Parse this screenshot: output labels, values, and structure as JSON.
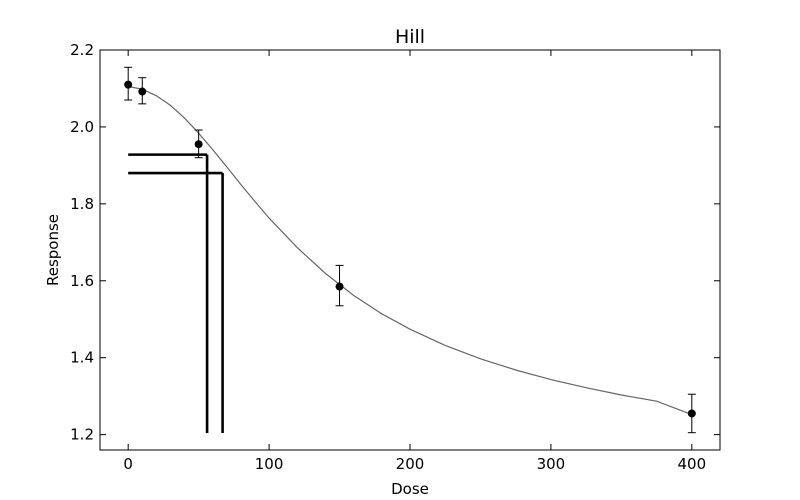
{
  "chart_data": {
    "type": "scatter",
    "title": "Hill",
    "xlabel": "Dose",
    "ylabel": "Response",
    "xlim": [
      -20,
      420
    ],
    "ylim": [
      1.16,
      2.2
    ],
    "xticks": [
      0,
      100,
      200,
      300,
      400
    ],
    "yticks": [
      1.2,
      1.4,
      1.6,
      1.8,
      2.0,
      2.2
    ],
    "xtick_labels": [
      "0",
      "100",
      "200",
      "300",
      "400"
    ],
    "ytick_labels": [
      "1.2",
      "1.4",
      "1.6",
      "1.8",
      "2.0",
      "2.2"
    ],
    "grid": false,
    "points": [
      {
        "x": 0,
        "y": 2.11,
        "err_low": 2.07,
        "err_high": 2.155
      },
      {
        "x": 10,
        "y": 2.092,
        "err_low": 2.06,
        "err_high": 2.128
      },
      {
        "x": 50,
        "y": 1.955,
        "err_low": 1.92,
        "err_high": 1.992
      },
      {
        "x": 150,
        "y": 1.585,
        "err_low": 1.535,
        "err_high": 1.64
      },
      {
        "x": 400,
        "y": 1.255,
        "err_low": 1.205,
        "err_high": 1.305
      }
    ],
    "fitted_curve": {
      "model": "hill",
      "x": [
        0,
        10,
        20,
        30,
        40,
        50,
        60,
        70,
        80,
        90,
        100,
        120,
        140,
        160,
        180,
        200,
        225,
        250,
        275,
        300,
        325,
        350,
        375,
        400
      ],
      "y": [
        2.105,
        2.098,
        2.081,
        2.056,
        2.023,
        1.984,
        1.941,
        1.896,
        1.85,
        1.806,
        1.763,
        1.686,
        1.619,
        1.562,
        1.514,
        1.474,
        1.432,
        1.397,
        1.368,
        1.343,
        1.322,
        1.303,
        1.287,
        1.252
      ]
    },
    "reference_lines": [
      {
        "x": 56,
        "y": 1.928
      },
      {
        "x": 67,
        "y": 1.88
      }
    ],
    "colors": {
      "points": "#000000",
      "curve": "#666666",
      "reference": "#000000",
      "axes": "#000000"
    }
  }
}
